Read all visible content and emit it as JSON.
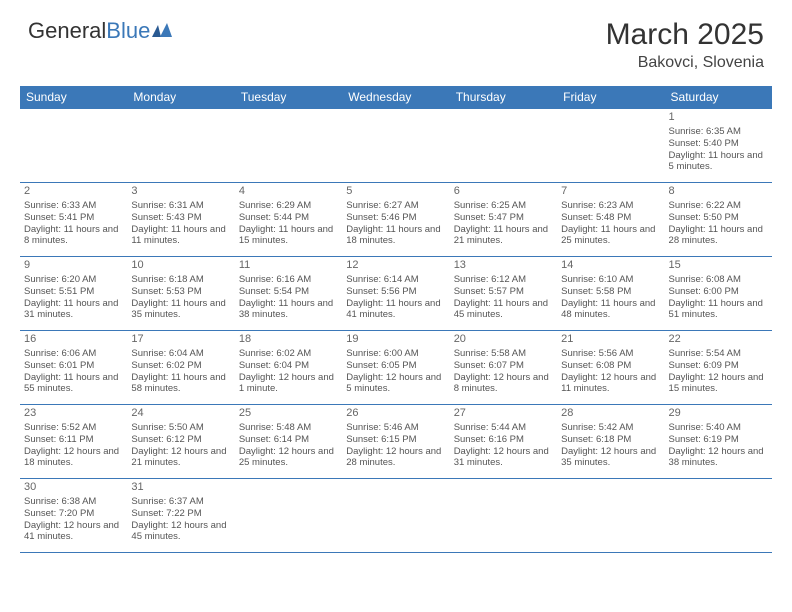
{
  "logo": {
    "text1": "General",
    "text2": "Blue"
  },
  "title": "March 2025",
  "location": "Bakovci, Slovenia",
  "columns": [
    "Sunday",
    "Monday",
    "Tuesday",
    "Wednesday",
    "Thursday",
    "Friday",
    "Saturday"
  ],
  "colors": {
    "header_bg": "#3b78b8",
    "header_text": "#ffffff",
    "border": "#3b78b8",
    "text": "#555555",
    "title": "#333333"
  },
  "weeks": [
    [
      null,
      null,
      null,
      null,
      null,
      null,
      {
        "num": "1",
        "sunrise": "Sunrise: 6:35 AM",
        "sunset": "Sunset: 5:40 PM",
        "daylight": "Daylight: 11 hours and 5 minutes."
      }
    ],
    [
      {
        "num": "2",
        "sunrise": "Sunrise: 6:33 AM",
        "sunset": "Sunset: 5:41 PM",
        "daylight": "Daylight: 11 hours and 8 minutes."
      },
      {
        "num": "3",
        "sunrise": "Sunrise: 6:31 AM",
        "sunset": "Sunset: 5:43 PM",
        "daylight": "Daylight: 11 hours and 11 minutes."
      },
      {
        "num": "4",
        "sunrise": "Sunrise: 6:29 AM",
        "sunset": "Sunset: 5:44 PM",
        "daylight": "Daylight: 11 hours and 15 minutes."
      },
      {
        "num": "5",
        "sunrise": "Sunrise: 6:27 AM",
        "sunset": "Sunset: 5:46 PM",
        "daylight": "Daylight: 11 hours and 18 minutes."
      },
      {
        "num": "6",
        "sunrise": "Sunrise: 6:25 AM",
        "sunset": "Sunset: 5:47 PM",
        "daylight": "Daylight: 11 hours and 21 minutes."
      },
      {
        "num": "7",
        "sunrise": "Sunrise: 6:23 AM",
        "sunset": "Sunset: 5:48 PM",
        "daylight": "Daylight: 11 hours and 25 minutes."
      },
      {
        "num": "8",
        "sunrise": "Sunrise: 6:22 AM",
        "sunset": "Sunset: 5:50 PM",
        "daylight": "Daylight: 11 hours and 28 minutes."
      }
    ],
    [
      {
        "num": "9",
        "sunrise": "Sunrise: 6:20 AM",
        "sunset": "Sunset: 5:51 PM",
        "daylight": "Daylight: 11 hours and 31 minutes."
      },
      {
        "num": "10",
        "sunrise": "Sunrise: 6:18 AM",
        "sunset": "Sunset: 5:53 PM",
        "daylight": "Daylight: 11 hours and 35 minutes."
      },
      {
        "num": "11",
        "sunrise": "Sunrise: 6:16 AM",
        "sunset": "Sunset: 5:54 PM",
        "daylight": "Daylight: 11 hours and 38 minutes."
      },
      {
        "num": "12",
        "sunrise": "Sunrise: 6:14 AM",
        "sunset": "Sunset: 5:56 PM",
        "daylight": "Daylight: 11 hours and 41 minutes."
      },
      {
        "num": "13",
        "sunrise": "Sunrise: 6:12 AM",
        "sunset": "Sunset: 5:57 PM",
        "daylight": "Daylight: 11 hours and 45 minutes."
      },
      {
        "num": "14",
        "sunrise": "Sunrise: 6:10 AM",
        "sunset": "Sunset: 5:58 PM",
        "daylight": "Daylight: 11 hours and 48 minutes."
      },
      {
        "num": "15",
        "sunrise": "Sunrise: 6:08 AM",
        "sunset": "Sunset: 6:00 PM",
        "daylight": "Daylight: 11 hours and 51 minutes."
      }
    ],
    [
      {
        "num": "16",
        "sunrise": "Sunrise: 6:06 AM",
        "sunset": "Sunset: 6:01 PM",
        "daylight": "Daylight: 11 hours and 55 minutes."
      },
      {
        "num": "17",
        "sunrise": "Sunrise: 6:04 AM",
        "sunset": "Sunset: 6:02 PM",
        "daylight": "Daylight: 11 hours and 58 minutes."
      },
      {
        "num": "18",
        "sunrise": "Sunrise: 6:02 AM",
        "sunset": "Sunset: 6:04 PM",
        "daylight": "Daylight: 12 hours and 1 minute."
      },
      {
        "num": "19",
        "sunrise": "Sunrise: 6:00 AM",
        "sunset": "Sunset: 6:05 PM",
        "daylight": "Daylight: 12 hours and 5 minutes."
      },
      {
        "num": "20",
        "sunrise": "Sunrise: 5:58 AM",
        "sunset": "Sunset: 6:07 PM",
        "daylight": "Daylight: 12 hours and 8 minutes."
      },
      {
        "num": "21",
        "sunrise": "Sunrise: 5:56 AM",
        "sunset": "Sunset: 6:08 PM",
        "daylight": "Daylight: 12 hours and 11 minutes."
      },
      {
        "num": "22",
        "sunrise": "Sunrise: 5:54 AM",
        "sunset": "Sunset: 6:09 PM",
        "daylight": "Daylight: 12 hours and 15 minutes."
      }
    ],
    [
      {
        "num": "23",
        "sunrise": "Sunrise: 5:52 AM",
        "sunset": "Sunset: 6:11 PM",
        "daylight": "Daylight: 12 hours and 18 minutes."
      },
      {
        "num": "24",
        "sunrise": "Sunrise: 5:50 AM",
        "sunset": "Sunset: 6:12 PM",
        "daylight": "Daylight: 12 hours and 21 minutes."
      },
      {
        "num": "25",
        "sunrise": "Sunrise: 5:48 AM",
        "sunset": "Sunset: 6:14 PM",
        "daylight": "Daylight: 12 hours and 25 minutes."
      },
      {
        "num": "26",
        "sunrise": "Sunrise: 5:46 AM",
        "sunset": "Sunset: 6:15 PM",
        "daylight": "Daylight: 12 hours and 28 minutes."
      },
      {
        "num": "27",
        "sunrise": "Sunrise: 5:44 AM",
        "sunset": "Sunset: 6:16 PM",
        "daylight": "Daylight: 12 hours and 31 minutes."
      },
      {
        "num": "28",
        "sunrise": "Sunrise: 5:42 AM",
        "sunset": "Sunset: 6:18 PM",
        "daylight": "Daylight: 12 hours and 35 minutes."
      },
      {
        "num": "29",
        "sunrise": "Sunrise: 5:40 AM",
        "sunset": "Sunset: 6:19 PM",
        "daylight": "Daylight: 12 hours and 38 minutes."
      }
    ],
    [
      {
        "num": "30",
        "sunrise": "Sunrise: 6:38 AM",
        "sunset": "Sunset: 7:20 PM",
        "daylight": "Daylight: 12 hours and 41 minutes."
      },
      {
        "num": "31",
        "sunrise": "Sunrise: 6:37 AM",
        "sunset": "Sunset: 7:22 PM",
        "daylight": "Daylight: 12 hours and 45 minutes."
      },
      null,
      null,
      null,
      null,
      null
    ]
  ]
}
